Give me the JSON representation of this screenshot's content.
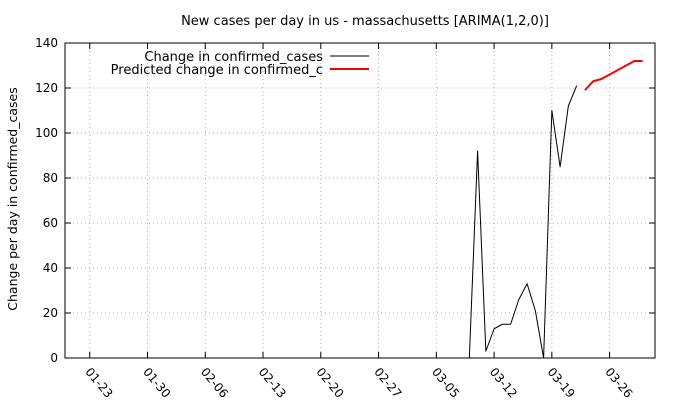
{
  "chart_data": {
    "type": "line",
    "title": "New cases per day in us - massachusetts [ARIMA(1,2,0)]",
    "xlabel": "",
    "ylabel": "Change per day in confirmed_cases",
    "ylim": [
      0,
      140
    ],
    "yticks": [
      0,
      20,
      40,
      60,
      80,
      100,
      120,
      140
    ],
    "x_tick_labels": [
      "01-23",
      "01-30",
      "02-06",
      "02-13",
      "02-20",
      "02-27",
      "03-05",
      "03-12",
      "03-19",
      "03-26"
    ],
    "grid": true,
    "legend_position": "top-left",
    "series": [
      {
        "name": "Change in confirmed_cases",
        "color": "#000000",
        "x": [
          "2020-01-22",
          "2020-01-23",
          "2020-01-24",
          "2020-01-25",
          "2020-01-26",
          "2020-01-27",
          "2020-01-28",
          "2020-01-29",
          "2020-01-30",
          "2020-01-31",
          "2020-02-01",
          "2020-02-02",
          "2020-02-03",
          "2020-02-04",
          "2020-02-05",
          "2020-02-06",
          "2020-02-07",
          "2020-02-08",
          "2020-02-09",
          "2020-02-10",
          "2020-02-11",
          "2020-02-12",
          "2020-02-13",
          "2020-02-14",
          "2020-02-15",
          "2020-02-16",
          "2020-02-17",
          "2020-02-18",
          "2020-02-19",
          "2020-02-20",
          "2020-02-21",
          "2020-02-22",
          "2020-02-23",
          "2020-02-24",
          "2020-02-25",
          "2020-02-26",
          "2020-02-27",
          "2020-02-28",
          "2020-02-29",
          "2020-03-01",
          "2020-03-02",
          "2020-03-03",
          "2020-03-04",
          "2020-03-05",
          "2020-03-06",
          "2020-03-07",
          "2020-03-08",
          "2020-03-09",
          "2020-03-10",
          "2020-03-11",
          "2020-03-12",
          "2020-03-13",
          "2020-03-14",
          "2020-03-15",
          "2020-03-16",
          "2020-03-17",
          "2020-03-18",
          "2020-03-19",
          "2020-03-20",
          "2020-03-21",
          "2020-03-22"
        ],
        "values": [
          0,
          0,
          0,
          0,
          0,
          0,
          0,
          0,
          0,
          0,
          0,
          0,
          0,
          0,
          0,
          0,
          0,
          0,
          0,
          0,
          0,
          0,
          0,
          0,
          0,
          0,
          0,
          0,
          0,
          0,
          0,
          0,
          0,
          0,
          0,
          0,
          0,
          0,
          0,
          0,
          0,
          0,
          0,
          0,
          0,
          0,
          0,
          0,
          92,
          3,
          13,
          15,
          15,
          26,
          33,
          21,
          0,
          110,
          85,
          112,
          121
        ]
      },
      {
        "name": "Predicted change in confirmed_c",
        "color": "#ff0000",
        "x": [
          "2020-03-23",
          "2020-03-24",
          "2020-03-25",
          "2020-03-26",
          "2020-03-27",
          "2020-03-28",
          "2020-03-29",
          "2020-03-30"
        ],
        "values": [
          119,
          123,
          124,
          126,
          128,
          130,
          132,
          132
        ]
      }
    ]
  }
}
